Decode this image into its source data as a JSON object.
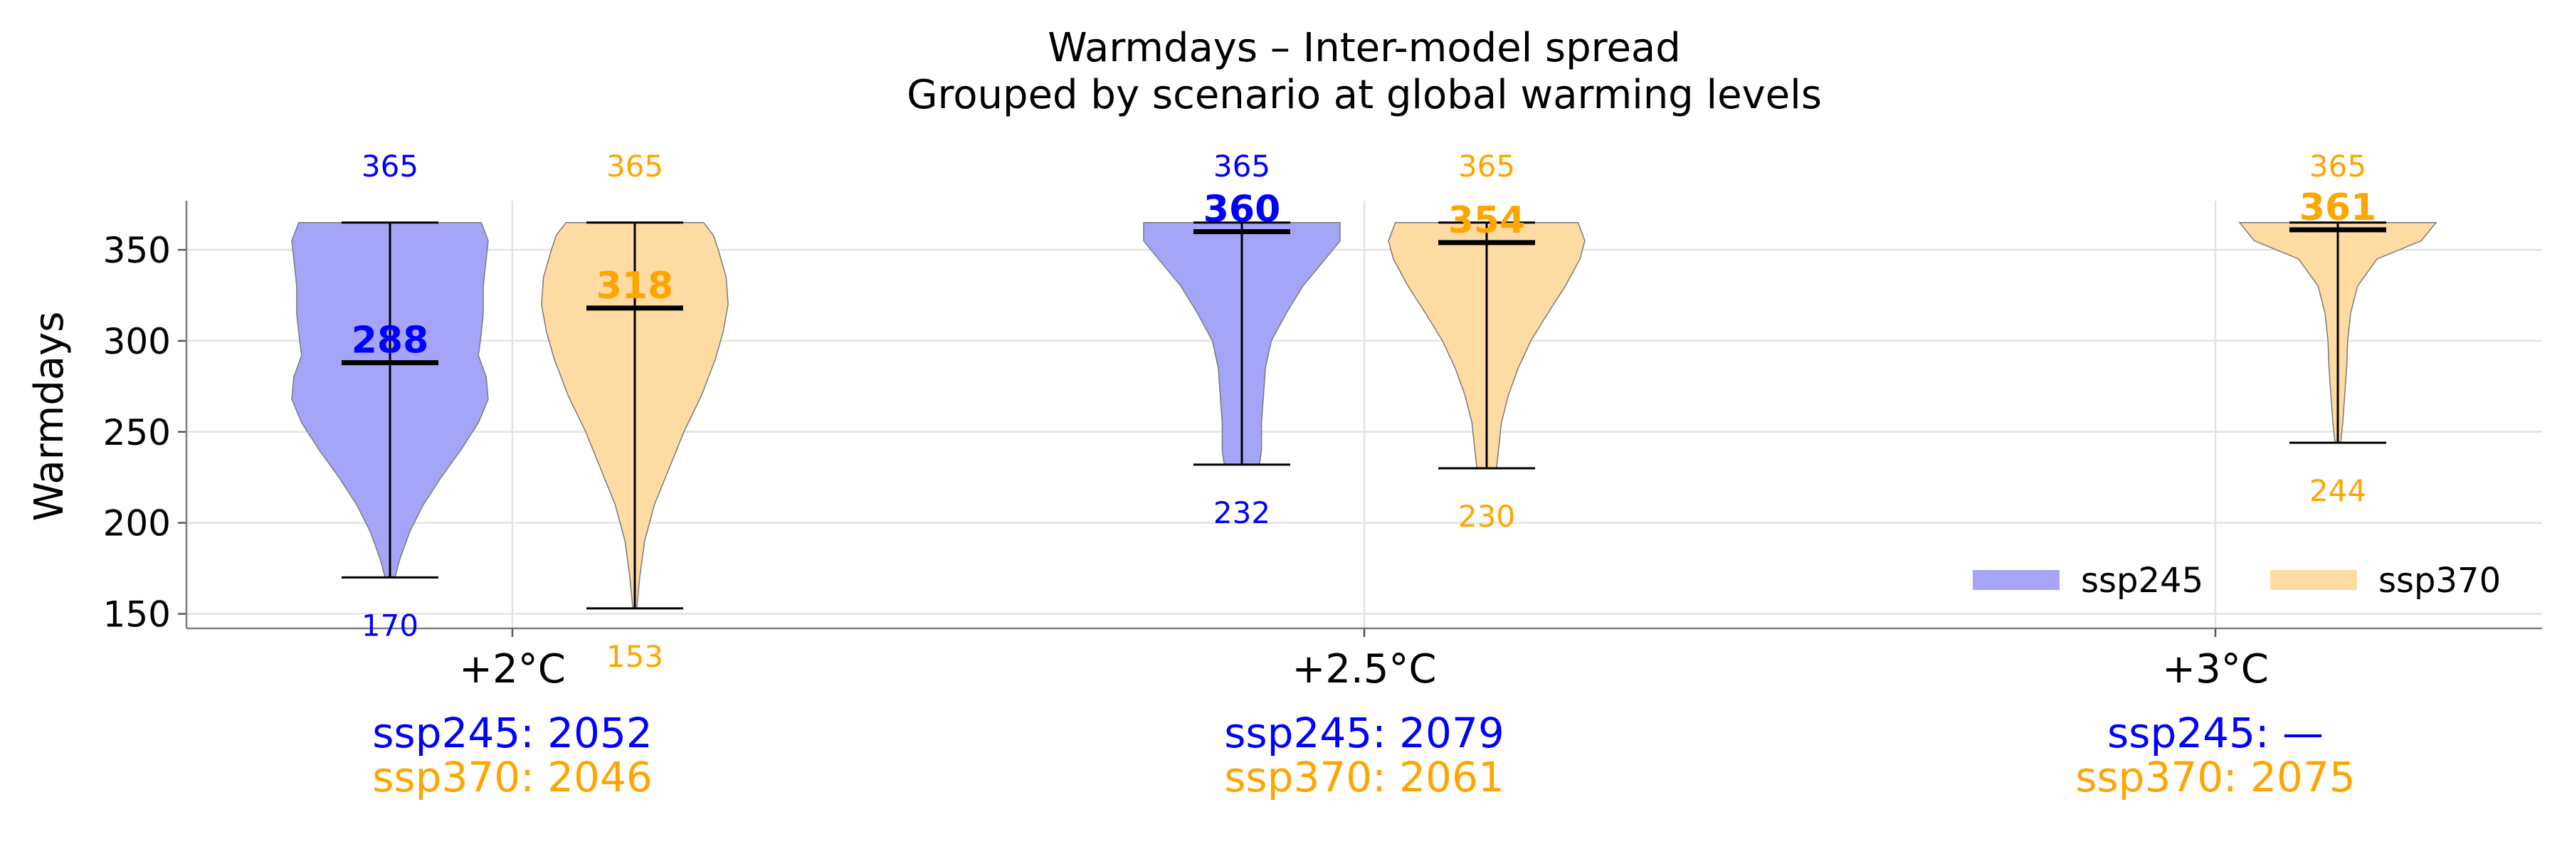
{
  "chart_data": {
    "type": "violin",
    "title": "Warmdays – Inter-model spread",
    "subtitle": "Grouped by scenario at global warming levels",
    "xlabel": "",
    "ylabel": "Warmdays",
    "ylim": [
      142,
      377
    ],
    "yticks": [
      150,
      200,
      250,
      300,
      350
    ],
    "categories": [
      "+2°C",
      "+2.5°C",
      "+3°C"
    ],
    "grid": true,
    "legend_position": "lower-right",
    "colors": {
      "ssp245": "#0000ff",
      "ssp370": "#ffa500",
      "ssp245_fill": "#a5a5f8",
      "ssp370_fill": "#fedba2"
    },
    "series": [
      {
        "name": "ssp245",
        "violins": [
          {
            "category": "+2°C",
            "min": 170,
            "max": 365,
            "median": 288,
            "density": [
              [
                170,
                0.05
              ],
              [
                180,
                0.1
              ],
              [
                195,
                0.2
              ],
              [
                210,
                0.34
              ],
              [
                225,
                0.52
              ],
              [
                240,
                0.72
              ],
              [
                255,
                0.9
              ],
              [
                268,
                1.0
              ],
              [
                280,
                0.98
              ],
              [
                292,
                0.9
              ],
              [
                300,
                0.92
              ],
              [
                315,
                0.95
              ],
              [
                330,
                0.95
              ],
              [
                345,
                0.98
              ],
              [
                355,
                1.0
              ],
              [
                365,
                0.93
              ]
            ]
          },
          {
            "category": "+2.5°C",
            "min": 232,
            "max": 365,
            "median": 360,
            "density": [
              [
                232,
                0.18
              ],
              [
                240,
                0.2
              ],
              [
                255,
                0.2
              ],
              [
                270,
                0.22
              ],
              [
                285,
                0.24
              ],
              [
                300,
                0.3
              ],
              [
                315,
                0.45
              ],
              [
                330,
                0.62
              ],
              [
                345,
                0.85
              ],
              [
                355,
                1.0
              ],
              [
                365,
                1.0
              ]
            ]
          },
          {
            "category": "+3°C",
            "min": null,
            "max": null,
            "median": null,
            "density": []
          }
        ]
      },
      {
        "name": "ssp370",
        "violins": [
          {
            "category": "+2°C",
            "min": 153,
            "max": 365,
            "median": 318,
            "density": [
              [
                153,
                0.02
              ],
              [
                170,
                0.05
              ],
              [
                190,
                0.1
              ],
              [
                210,
                0.2
              ],
              [
                230,
                0.35
              ],
              [
                250,
                0.5
              ],
              [
                270,
                0.68
              ],
              [
                290,
                0.82
              ],
              [
                305,
                0.9
              ],
              [
                320,
                0.95
              ],
              [
                335,
                0.93
              ],
              [
                350,
                0.85
              ],
              [
                358,
                0.8
              ],
              [
                365,
                0.7
              ]
            ]
          },
          {
            "category": "+2.5°C",
            "min": 230,
            "max": 365,
            "median": 354,
            "density": [
              [
                230,
                0.1
              ],
              [
                240,
                0.12
              ],
              [
                255,
                0.15
              ],
              [
                270,
                0.22
              ],
              [
                285,
                0.32
              ],
              [
                300,
                0.45
              ],
              [
                315,
                0.62
              ],
              [
                330,
                0.8
              ],
              [
                345,
                0.95
              ],
              [
                355,
                1.0
              ],
              [
                365,
                0.93
              ]
            ]
          },
          {
            "category": "+3°C",
            "min": 244,
            "max": 365,
            "median": 361,
            "density": [
              [
                244,
                0.03
              ],
              [
                255,
                0.05
              ],
              [
                270,
                0.07
              ],
              [
                285,
                0.09
              ],
              [
                300,
                0.1
              ],
              [
                315,
                0.13
              ],
              [
                330,
                0.2
              ],
              [
                345,
                0.4
              ],
              [
                355,
                0.85
              ],
              [
                365,
                1.0
              ]
            ]
          }
        ]
      }
    ],
    "year_labels": [
      {
        "category": "+2°C",
        "ssp245": "ssp245: 2052",
        "ssp370": "ssp370: 2046"
      },
      {
        "category": "+2.5°C",
        "ssp245": "ssp245: 2079",
        "ssp370": "ssp370: 2061"
      },
      {
        "category": "+3°C",
        "ssp245": "ssp245: —",
        "ssp370": "ssp370: 2075"
      }
    ]
  }
}
